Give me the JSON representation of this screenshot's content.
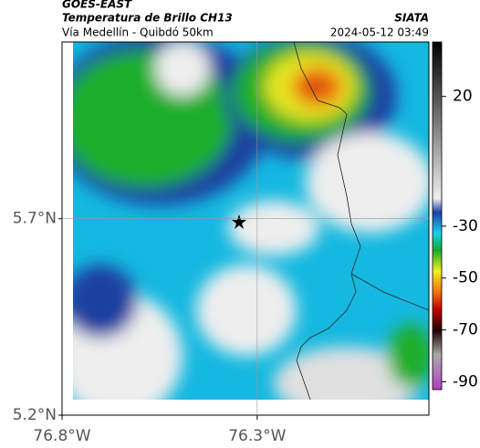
{
  "header": {
    "title": "GOES-EAST",
    "subtitle": "Temperatura de Brillo CH13",
    "route": "Vía Medellín - Quibdó 50km",
    "source": "SIATA",
    "timestamp": "2024-05-12 03:49"
  },
  "map": {
    "xlim": [
      -76.8,
      -75.86
    ],
    "ylim": [
      5.2,
      6.15
    ],
    "xticks": [
      {
        "value": -76.8,
        "label": "76.8°W"
      },
      {
        "value": -76.3,
        "label": "76.3°W"
      }
    ],
    "yticks": [
      {
        "value": 5.7,
        "label": "5.7°N"
      },
      {
        "value": 5.2,
        "label": "5.2°N"
      }
    ],
    "grid": true
  },
  "colorbar": {
    "lim": [
      -93,
      41
    ],
    "ticks": [
      20,
      -30,
      -50,
      -70,
      -90
    ]
  }
}
